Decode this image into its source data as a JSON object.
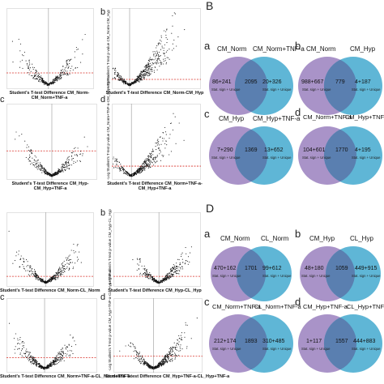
{
  "section_B": "B",
  "section_D": "D",
  "volcano_top": [
    {
      "letter": "",
      "xlabel": "Student's T-test Difference CM_Norm-CM_Norm+TNF-a",
      "ylabel": ""
    },
    {
      "letter": "b",
      "xlabel": "Student's T-test Difference CM_Norm-CM_Hyp",
      "ylabel": "-Log Student's T-test p-value CM_Norm-CM_Hyp"
    },
    {
      "letter": "c",
      "xlabel": "Student's T-test Difference CM_Hyp-CM_Hyp+TNF-a",
      "ylabel": "-Log Student's T-test p-value CM_Hyp-CM_Hyp+TNF-a"
    },
    {
      "letter": "d",
      "xlabel": "Student's T-test Difference CM_Norm+TNF-a-CM_Hyp+TNF-a",
      "ylabel": "-Log Student's T-test p-value CM_Norm+TNF-a-CM_Hyp+TNF-a"
    }
  ],
  "volcano_bottom": [
    {
      "letter": "",
      "xlabel": "Student's T-test Difference CM_Norm-CL_Norm",
      "ylabel": ""
    },
    {
      "letter": "b",
      "xlabel": "Student's T-test Difference CM_Hyp-CL_Hyp",
      "ylabel": "-Log Student's T-test p-value CM_Hyp-CL_Hyp"
    },
    {
      "letter": "c",
      "xlabel": "Student's T-test Difference CM_Norm+TNF-a-CL_Norm+TNF-a",
      "ylabel": ""
    },
    {
      "letter": "d",
      "xlabel": "Student's T-test Difference CM_Hyp+TNF-a-CL_Hyp+TNF-a",
      "ylabel": "-Log Student's T-test p-value CM_Hyp+TNF-a-CL_Hyp+TNF-a"
    }
  ],
  "venn_B": [
    {
      "letter": "a",
      "left_title": "CM_Norm",
      "right_title": "CM_Norm+TNF-a",
      "left_num": "86+241",
      "mid_num": "2095",
      "right_num": "20+326",
      "note": "Stat. sign + Unique"
    },
    {
      "letter": "b",
      "left_title": "CM_Norm",
      "right_title": "CM_Hyp",
      "left_num": "988+667",
      "mid_num": "779",
      "right_num": "4+187",
      "note": "Stat. sign + Unique"
    },
    {
      "letter": "c",
      "left_title": "CM_Hyp",
      "right_title": "CM_Hyp+TNF-a",
      "left_num": "7+290",
      "mid_num": "1369",
      "right_num": "13+652",
      "note": "Stat. sign + Unique"
    },
    {
      "letter": "d",
      "left_title": "CM_Norm+TNF-a",
      "right_title": "CM_Hyp+TNF-a",
      "left_num": "104+601",
      "mid_num": "1770",
      "right_num": "4+195",
      "note": "Stat. sign + Unique"
    }
  ],
  "venn_D": [
    {
      "letter": "a",
      "left_title": "CM_Norm",
      "right_title": "CL_Norm",
      "left_num": "470+162",
      "mid_num": "1701",
      "right_num": "99+612",
      "note": "Stat. sign + Unique"
    },
    {
      "letter": "b",
      "left_title": "CM_Hyp",
      "right_title": "CL_Hyp",
      "left_num": "48+180",
      "mid_num": "1059",
      "right_num": "449+915",
      "note": "Stat. sign + Unique"
    },
    {
      "letter": "c",
      "left_title": "CM_Norm+TNF-a",
      "right_title": "CL_Norm+TNF-a",
      "left_num": "212+174",
      "mid_num": "1893",
      "right_num": "310+485",
      "note": "Stat. sign + Unique"
    },
    {
      "letter": "d",
      "left_title": "CM_Hyp+TNF-a",
      "right_title": "CL_Hyp+TNF-",
      "left_num": "1+117",
      "mid_num": "1557",
      "right_num": "444+883",
      "note": "Stat. sign + Unique"
    }
  ],
  "colors": {
    "left_circle": "#a993c8",
    "right_circle": "#5fb6d6",
    "overlap": "#5a7fb0",
    "threshold": "#d9332b",
    "points": "#111111"
  }
}
